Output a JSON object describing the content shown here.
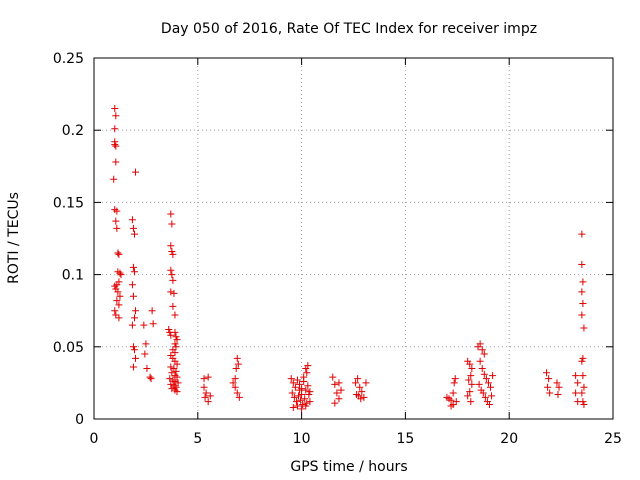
{
  "chart_data": {
    "type": "scatter",
    "title": "Day 050 of 2016, Rate Of TEC Index for receiver impz",
    "xlabel": "GPS time / hours",
    "ylabel": "ROTI / TECUs",
    "xlim": [
      0,
      25
    ],
    "ylim": [
      0,
      0.25
    ],
    "xticks": [
      0,
      5,
      10,
      15,
      20,
      25
    ],
    "xtick_labels": [
      "0",
      "5",
      "10",
      "15",
      "20",
      "25"
    ],
    "yticks": [
      0,
      0.05,
      0.1,
      0.15,
      0.2,
      0.25
    ],
    "ytick_labels": [
      "0",
      "0.05",
      "0.1",
      "0.15",
      "0.2",
      "0.25"
    ],
    "grid": true,
    "marker": "+",
    "color": "#e00000",
    "series": [
      {
        "name": "ROTI",
        "points": [
          [
            1.0,
            0.215
          ],
          [
            1.05,
            0.21
          ],
          [
            1.0,
            0.201
          ],
          [
            1.0,
            0.192
          ],
          [
            1.05,
            0.189
          ],
          [
            1.0,
            0.19
          ],
          [
            1.05,
            0.178
          ],
          [
            0.95,
            0.166
          ],
          [
            1.0,
            0.145
          ],
          [
            1.1,
            0.144
          ],
          [
            1.05,
            0.137
          ],
          [
            1.1,
            0.132
          ],
          [
            1.15,
            0.115
          ],
          [
            1.2,
            0.114
          ],
          [
            1.15,
            0.102
          ],
          [
            1.25,
            0.101
          ],
          [
            1.3,
            0.1
          ],
          [
            1.2,
            0.095
          ],
          [
            1.1,
            0.093
          ],
          [
            1.05,
            0.09
          ],
          [
            1.0,
            0.092
          ],
          [
            1.15,
            0.088
          ],
          [
            1.25,
            0.085
          ],
          [
            1.1,
            0.082
          ],
          [
            1.2,
            0.079
          ],
          [
            1.0,
            0.075
          ],
          [
            1.05,
            0.072
          ],
          [
            1.2,
            0.07
          ],
          [
            1.85,
            0.138
          ],
          [
            1.9,
            0.132
          ],
          [
            1.95,
            0.128
          ],
          [
            2.0,
            0.171
          ],
          [
            1.9,
            0.105
          ],
          [
            1.95,
            0.102
          ],
          [
            1.85,
            0.093
          ],
          [
            1.9,
            0.085
          ],
          [
            2.0,
            0.075
          ],
          [
            1.95,
            0.07
          ],
          [
            1.85,
            0.065
          ],
          [
            1.9,
            0.05
          ],
          [
            1.95,
            0.048
          ],
          [
            2.0,
            0.042
          ],
          [
            1.9,
            0.036
          ],
          [
            2.4,
            0.065
          ],
          [
            2.5,
            0.052
          ],
          [
            2.45,
            0.045
          ],
          [
            2.55,
            0.035
          ],
          [
            2.7,
            0.029
          ],
          [
            2.75,
            0.028
          ],
          [
            2.8,
            0.075
          ],
          [
            2.85,
            0.066
          ],
          [
            3.7,
            0.142
          ],
          [
            3.75,
            0.135
          ],
          [
            3.7,
            0.12
          ],
          [
            3.75,
            0.116
          ],
          [
            3.8,
            0.114
          ],
          [
            3.7,
            0.103
          ],
          [
            3.75,
            0.1
          ],
          [
            3.8,
            0.096
          ],
          [
            3.7,
            0.088
          ],
          [
            3.85,
            0.087
          ],
          [
            3.8,
            0.078
          ],
          [
            3.9,
            0.072
          ],
          [
            3.6,
            0.062
          ],
          [
            3.65,
            0.06
          ],
          [
            3.7,
            0.058
          ],
          [
            3.9,
            0.06
          ],
          [
            3.95,
            0.057
          ],
          [
            4.0,
            0.055
          ],
          [
            3.9,
            0.052
          ],
          [
            3.95,
            0.05
          ],
          [
            3.8,
            0.048
          ],
          [
            3.9,
            0.046
          ],
          [
            3.7,
            0.044
          ],
          [
            3.8,
            0.042
          ],
          [
            3.9,
            0.04
          ],
          [
            4.0,
            0.038
          ],
          [
            3.7,
            0.036
          ],
          [
            3.85,
            0.035
          ],
          [
            3.95,
            0.033
          ],
          [
            3.75,
            0.032
          ],
          [
            3.9,
            0.03
          ],
          [
            4.0,
            0.029
          ],
          [
            3.65,
            0.028
          ],
          [
            3.8,
            0.027
          ],
          [
            3.9,
            0.026
          ],
          [
            4.05,
            0.025
          ],
          [
            3.7,
            0.024
          ],
          [
            3.85,
            0.023
          ],
          [
            3.95,
            0.022
          ],
          [
            3.75,
            0.021
          ],
          [
            3.9,
            0.02
          ],
          [
            4.0,
            0.019
          ],
          [
            5.3,
            0.028
          ],
          [
            5.5,
            0.029
          ],
          [
            5.3,
            0.022
          ],
          [
            5.4,
            0.018
          ],
          [
            5.35,
            0.015
          ],
          [
            5.5,
            0.012
          ],
          [
            5.6,
            0.016
          ],
          [
            6.7,
            0.025
          ],
          [
            6.8,
            0.028
          ],
          [
            6.85,
            0.035
          ],
          [
            6.9,
            0.042
          ],
          [
            6.95,
            0.038
          ],
          [
            6.8,
            0.022
          ],
          [
            6.9,
            0.018
          ],
          [
            7.0,
            0.015
          ],
          [
            9.5,
            0.028
          ],
          [
            9.6,
            0.025
          ],
          [
            9.7,
            0.022
          ],
          [
            9.8,
            0.027
          ],
          [
            9.9,
            0.024
          ],
          [
            10.0,
            0.021
          ],
          [
            10.1,
            0.026
          ],
          [
            10.2,
            0.02
          ],
          [
            10.3,
            0.023
          ],
          [
            10.4,
            0.019
          ],
          [
            9.55,
            0.018
          ],
          [
            9.65,
            0.015
          ],
          [
            9.75,
            0.012
          ],
          [
            9.85,
            0.016
          ],
          [
            9.95,
            0.013
          ],
          [
            10.05,
            0.01
          ],
          [
            10.15,
            0.014
          ],
          [
            10.25,
            0.011
          ],
          [
            10.35,
            0.017
          ],
          [
            9.6,
            0.008
          ],
          [
            9.8,
            0.009
          ],
          [
            10.0,
            0.007
          ],
          [
            10.2,
            0.009
          ],
          [
            10.4,
            0.012
          ],
          [
            10.2,
            0.035
          ],
          [
            10.3,
            0.037
          ],
          [
            10.25,
            0.032
          ],
          [
            10.1,
            0.029
          ],
          [
            9.9,
            0.02
          ],
          [
            10.0,
            0.017
          ],
          [
            11.5,
            0.029
          ],
          [
            11.6,
            0.024
          ],
          [
            11.8,
            0.025
          ],
          [
            11.7,
            0.018
          ],
          [
            11.9,
            0.02
          ],
          [
            11.6,
            0.011
          ],
          [
            11.8,
            0.014
          ],
          [
            12.6,
            0.025
          ],
          [
            12.7,
            0.028
          ],
          [
            12.8,
            0.022
          ],
          [
            12.65,
            0.017
          ],
          [
            12.75,
            0.016
          ],
          [
            12.9,
            0.019
          ],
          [
            13.1,
            0.025
          ],
          [
            13.0,
            0.015
          ],
          [
            12.85,
            0.014
          ],
          [
            17.0,
            0.015
          ],
          [
            17.1,
            0.014
          ],
          [
            17.2,
            0.013
          ],
          [
            17.3,
            0.018
          ],
          [
            17.35,
            0.025
          ],
          [
            17.4,
            0.028
          ],
          [
            17.45,
            0.012
          ],
          [
            17.3,
            0.01
          ],
          [
            17.2,
            0.009
          ],
          [
            18.0,
            0.04
          ],
          [
            18.1,
            0.038
          ],
          [
            18.2,
            0.035
          ],
          [
            18.15,
            0.03
          ],
          [
            18.05,
            0.027
          ],
          [
            18.2,
            0.024
          ],
          [
            18.1,
            0.019
          ],
          [
            18.0,
            0.016
          ],
          [
            18.15,
            0.012
          ],
          [
            18.5,
            0.05
          ],
          [
            18.6,
            0.052
          ],
          [
            18.7,
            0.048
          ],
          [
            18.8,
            0.045
          ],
          [
            18.6,
            0.04
          ],
          [
            18.7,
            0.035
          ],
          [
            18.8,
            0.031
          ],
          [
            18.9,
            0.028
          ],
          [
            19.0,
            0.025
          ],
          [
            19.1,
            0.022
          ],
          [
            18.65,
            0.02
          ],
          [
            18.75,
            0.018
          ],
          [
            18.85,
            0.015
          ],
          [
            18.95,
            0.012
          ],
          [
            19.05,
            0.01
          ],
          [
            19.15,
            0.016
          ],
          [
            18.55,
            0.024
          ],
          [
            19.2,
            0.03
          ],
          [
            21.8,
            0.032
          ],
          [
            21.9,
            0.028
          ],
          [
            21.85,
            0.022
          ],
          [
            21.95,
            0.018
          ],
          [
            22.3,
            0.025
          ],
          [
            22.4,
            0.022
          ],
          [
            22.35,
            0.017
          ],
          [
            23.2,
            0.03
          ],
          [
            23.3,
            0.025
          ],
          [
            23.2,
            0.018
          ],
          [
            23.3,
            0.012
          ],
          [
            23.5,
            0.128
          ],
          [
            23.5,
            0.107
          ],
          [
            23.55,
            0.095
          ],
          [
            23.5,
            0.088
          ],
          [
            23.55,
            0.08
          ],
          [
            23.5,
            0.072
          ],
          [
            23.6,
            0.063
          ],
          [
            23.55,
            0.042
          ],
          [
            23.5,
            0.04
          ],
          [
            23.55,
            0.03
          ],
          [
            23.6,
            0.022
          ],
          [
            23.5,
            0.018
          ],
          [
            23.55,
            0.012
          ],
          [
            23.6,
            0.01
          ]
        ]
      }
    ]
  }
}
